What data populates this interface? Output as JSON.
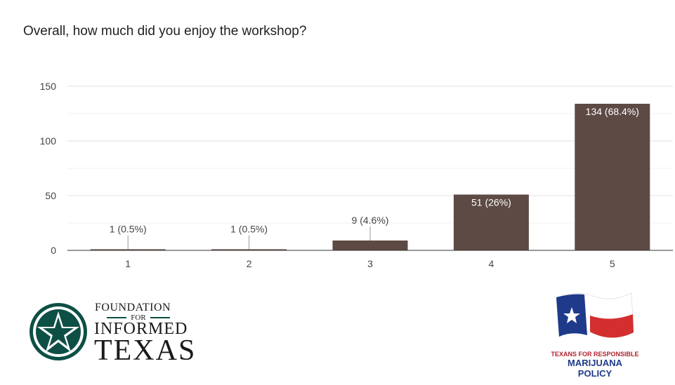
{
  "question": "Overall, how much did you enjoy the workshop?",
  "colors": {
    "bar": "#5d4a45",
    "grid": "#e0e0e0",
    "axis": "#333333",
    "text": "#444444"
  },
  "chart_data": {
    "type": "bar",
    "categories": [
      "1",
      "2",
      "3",
      "4",
      "5"
    ],
    "values": [
      1,
      1,
      9,
      51,
      134
    ],
    "data_labels": [
      "1 (0.5%)",
      "1 (0.5%)",
      "9 (4.6%)",
      "51 (26%)",
      "134 (68.4%)"
    ],
    "y_ticks": [
      "0",
      "50",
      "100",
      "150"
    ],
    "ylim": [
      0,
      150
    ],
    "grid": true,
    "title": "",
    "xlabel": "",
    "ylabel": ""
  },
  "logos": {
    "left": {
      "name": "Foundation for Informed Texas",
      "icon": "star-seal-icon",
      "line1": "FOUNDATION",
      "line2": "FOR",
      "line3": "INFORMED",
      "line4": "TEXAS"
    },
    "right": {
      "name": "Texans for Responsible Marijuana Policy",
      "icon": "texas-flag-icon",
      "line1": "TEXANS FOR RESPONSIBLE",
      "line2": "MARIJUANA POLICY"
    }
  }
}
